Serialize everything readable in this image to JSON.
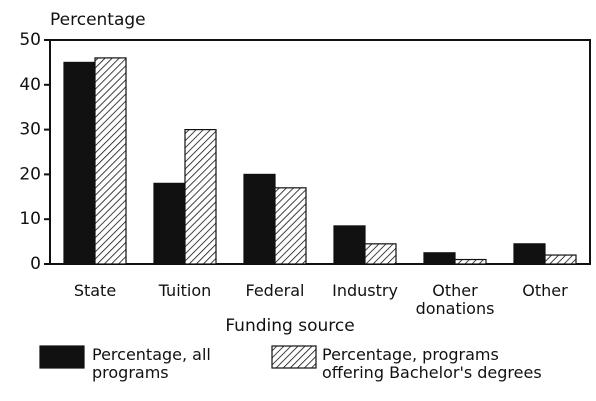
{
  "chart_data": {
    "type": "bar",
    "y_axis_label": "Percentage",
    "x_axis_label": "Funding source",
    "categories": [
      "State",
      "Tuition",
      "Federal",
      "Industry",
      "Other donations",
      "Other"
    ],
    "series": [
      {
        "name": "Percentage, all programs",
        "color": "#111111",
        "hatch": false,
        "values": [
          45,
          18,
          20,
          8.5,
          2.5,
          4.5
        ]
      },
      {
        "name": "Percentage, programs offering Bachelor's degrees",
        "color": "#111111",
        "hatch": true,
        "values": [
          46,
          30,
          17,
          4.5,
          1,
          2
        ]
      }
    ],
    "ylim": [
      0,
      50
    ],
    "yticks": [
      0,
      10,
      20,
      30,
      40,
      50
    ],
    "grid": false
  }
}
